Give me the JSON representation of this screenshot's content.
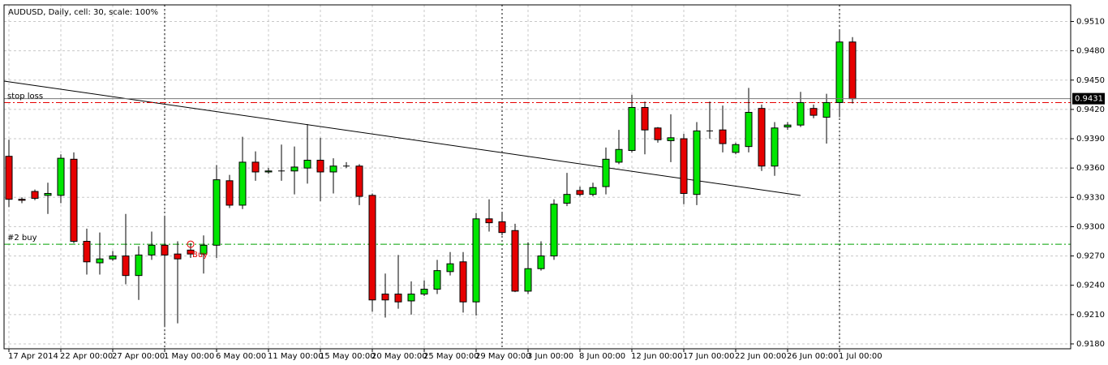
{
  "chart_data": {
    "type": "candlestick",
    "title": "AUDUSD, Daily, cell: 30, scale: 100%",
    "categories": [
      "17 Apr 2014",
      null,
      null,
      null,
      "22 Apr 00:00",
      null,
      null,
      null,
      "27 Apr 00:00",
      null,
      null,
      null,
      "1 May 00:00",
      null,
      null,
      null,
      "6 May 00:00",
      null,
      null,
      null,
      "11 May 00:00",
      null,
      null,
      null,
      "15 May 00:00",
      null,
      null,
      null,
      "20 May 00:00",
      null,
      null,
      null,
      "25 May 00:00",
      null,
      null,
      null,
      "29 May 00:00",
      null,
      null,
      null,
      "3 Jun 00:00",
      null,
      null,
      null,
      "8 Jun 00:00",
      null,
      null,
      null,
      "12 Jun 00:00",
      null,
      null,
      null,
      "17 Jun 00:00",
      null,
      null,
      null,
      "22 Jun 00:00",
      null,
      null,
      null,
      "26 Jun 00:00",
      null,
      null,
      null,
      "1 Jul 00:00",
      null
    ],
    "open": [
      0.9372,
      0.9328,
      0.9336,
      0.9332,
      0.9332,
      0.9369,
      0.9285,
      0.9263,
      0.9267,
      0.927,
      0.925,
      0.9271,
      0.9281,
      0.9272,
      0.9276,
      0.9272,
      0.9281,
      0.9347,
      0.9322,
      0.9366,
      0.9356,
      0.9357,
      0.9357,
      0.936,
      0.9368,
      0.9356,
      0.9362,
      0.9362,
      0.9332,
      0.9231,
      0.9231,
      0.9224,
      0.9231,
      0.9236,
      0.9254,
      0.9264,
      0.9223,
      0.9308,
      0.9305,
      0.9296,
      0.9234,
      0.9257,
      0.927,
      0.9324,
      0.9337,
      0.9333,
      0.9341,
      0.9366,
      0.9378,
      0.9422,
      0.9401,
      0.9388,
      0.939,
      0.9333,
      0.9398,
      0.9399,
      0.9376,
      0.9382,
      0.9421,
      0.9362,
      0.9402,
      0.9404,
      0.9421,
      0.9412,
      0.9427,
      0.9489
    ],
    "high": [
      0.9389,
      0.933,
      0.9338,
      0.9345,
      0.9374,
      0.9376,
      0.9298,
      0.9294,
      0.9275,
      0.9313,
      0.928,
      0.9295,
      0.9311,
      0.9285,
      0.9283,
      0.9291,
      0.9363,
      0.9353,
      0.9392,
      0.9377,
      0.936,
      0.9384,
      0.9382,
      0.9405,
      0.9391,
      0.937,
      0.9366,
      0.9364,
      0.9334,
      0.9252,
      0.9271,
      0.9244,
      0.9245,
      0.9266,
      0.9274,
      0.9274,
      0.9314,
      0.9328,
      0.9314,
      0.9303,
      0.9284,
      0.9285,
      0.9328,
      0.9355,
      0.9341,
      0.9345,
      0.9381,
      0.9399,
      0.9435,
      0.9428,
      0.9402,
      0.9415,
      0.9395,
      0.9407,
      0.9428,
      0.9424,
      0.9386,
      0.9442,
      0.9425,
      0.9407,
      0.9407,
      0.9438,
      0.9425,
      0.9436,
      0.9502,
      0.9494
    ],
    "low": [
      0.932,
      0.9324,
      0.9327,
      0.9313,
      0.9324,
      0.9283,
      0.9251,
      0.9251,
      0.9265,
      0.9241,
      0.9225,
      0.9266,
      0.9199,
      0.9201,
      0.9268,
      0.9252,
      0.9268,
      0.9319,
      0.9318,
      0.9347,
      0.9354,
      0.9347,
      0.9333,
      0.9344,
      0.9326,
      0.9334,
      0.936,
      0.9322,
      0.9213,
      0.9207,
      0.9216,
      0.921,
      0.9229,
      0.9231,
      0.925,
      0.9212,
      0.9209,
      0.9295,
      0.9291,
      0.9233,
      0.9231,
      0.9255,
      0.9266,
      0.9321,
      0.9331,
      0.9331,
      0.9333,
      0.9364,
      0.9376,
      0.9374,
      0.9386,
      0.9366,
      0.9323,
      0.9322,
      0.939,
      0.9376,
      0.9374,
      0.9376,
      0.9357,
      0.9352,
      0.9399,
      0.9402,
      0.9411,
      0.9385,
      0.9412,
      0.9426
    ],
    "close": [
      0.9328,
      0.9327,
      0.9329,
      0.9334,
      0.937,
      0.9285,
      0.9264,
      0.9267,
      0.927,
      0.925,
      0.9271,
      0.9281,
      0.9271,
      0.9267,
      0.9272,
      0.9281,
      0.9348,
      0.9322,
      0.9366,
      0.9356,
      0.9357,
      0.9357,
      0.9361,
      0.9368,
      0.9356,
      0.9362,
      0.9362,
      0.9331,
      0.9225,
      0.9225,
      0.9223,
      0.9231,
      0.9236,
      0.9255,
      0.9262,
      0.9223,
      0.9308,
      0.9304,
      0.9294,
      0.9234,
      0.9257,
      0.927,
      0.9323,
      0.9333,
      0.9333,
      0.934,
      0.9369,
      0.9379,
      0.9422,
      0.9399,
      0.9389,
      0.9391,
      0.9334,
      0.9398,
      0.9398,
      0.9385,
      0.9384,
      0.9417,
      0.9362,
      0.9401,
      0.9404,
      0.9427,
      0.9414,
      0.9427,
      0.9489,
      0.9431
    ],
    "up_color": "#00e600",
    "down_color": "#e60000",
    "ylim": [
      0.9175,
      0.9527
    ],
    "yticks": [
      {
        "value": 0.951,
        "label": "0.9510"
      },
      {
        "value": 0.948,
        "label": "0.9480"
      },
      {
        "value": 0.945,
        "label": "0.9450"
      },
      {
        "value": 0.942,
        "label": "0.9420"
      },
      {
        "value": 0.939,
        "label": "0.9390"
      },
      {
        "value": 0.936,
        "label": "0.9360"
      },
      {
        "value": 0.933,
        "label": "0.9330"
      },
      {
        "value": 0.93,
        "label": "0.9300"
      },
      {
        "value": 0.927,
        "label": "0.9270"
      },
      {
        "value": 0.924,
        "label": "0.9240"
      },
      {
        "value": 0.921,
        "label": "0.9210"
      },
      {
        "value": 0.918,
        "label": "0.9180"
      }
    ],
    "grid": true,
    "last_price": 0.9431,
    "levels": [
      {
        "label": "stop loss",
        "value": 0.9427,
        "color": "#e60000"
      },
      {
        "label": "#2 buy",
        "value": 0.9282,
        "color": "#00a000"
      }
    ],
    "order_marker": {
      "label": "Buy",
      "value": 0.9282,
      "color": "#e60000"
    }
  }
}
